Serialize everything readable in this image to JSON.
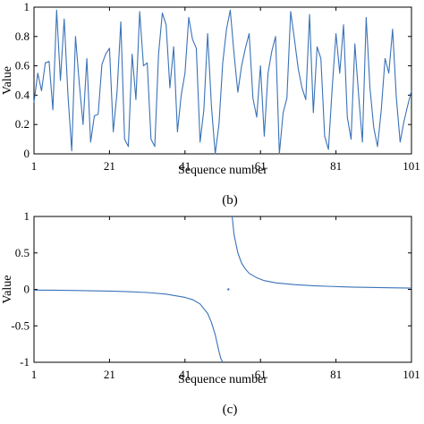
{
  "chart_data": [
    {
      "type": "line",
      "caption": "(b)",
      "xlabel": "Sequence number",
      "ylabel": "Value",
      "xlim": [
        1,
        101
      ],
      "ylim": [
        0,
        1
      ],
      "xticks": [
        "1",
        "21",
        "41",
        "61",
        "81",
        "101"
      ],
      "yticks": [
        "0",
        "0.2",
        "0.4",
        "0.6",
        "0.8",
        "1"
      ],
      "grid": false,
      "color": "#3a72b8",
      "series": [
        {
          "x": [
            1,
            2,
            3,
            4,
            5,
            6,
            7,
            8,
            9,
            10,
            11,
            12,
            13,
            14,
            15,
            16,
            17,
            18,
            19,
            20,
            21,
            22,
            23,
            24,
            25,
            26,
            27,
            28,
            29,
            30,
            31,
            32,
            33,
            34,
            35,
            36,
            37,
            38,
            39,
            40,
            41,
            42,
            43,
            44,
            45,
            46,
            47,
            48,
            49,
            50,
            51,
            52,
            53,
            54,
            55,
            56,
            57,
            58,
            59,
            60,
            61,
            62,
            63,
            64,
            65,
            66,
            67,
            68,
            69,
            70,
            71,
            72,
            73,
            74,
            75,
            76,
            77,
            78,
            79,
            80,
            81,
            82,
            83,
            84,
            85,
            86,
            87,
            88,
            89,
            90,
            91,
            92,
            93,
            94,
            95,
            96,
            97,
            98,
            99,
            100,
            101
          ],
          "values": [
            0.35,
            0.55,
            0.43,
            0.62,
            0.63,
            0.3,
            0.98,
            0.5,
            0.92,
            0.4,
            0.02,
            0.8,
            0.48,
            0.2,
            0.65,
            0.08,
            0.26,
            0.27,
            0.61,
            0.68,
            0.72,
            0.15,
            0.42,
            0.9,
            0.1,
            0.05,
            0.68,
            0.37,
            0.97,
            0.6,
            0.62,
            0.1,
            0.05,
            0.68,
            0.96,
            0.88,
            0.45,
            0.73,
            0.15,
            0.4,
            0.55,
            0.93,
            0.78,
            0.72,
            0.08,
            0.3,
            0.82,
            0.33,
            0.0,
            0.2,
            0.62,
            0.85,
            0.98,
            0.68,
            0.42,
            0.6,
            0.72,
            0.82,
            0.38,
            0.25,
            0.6,
            0.12,
            0.55,
            0.7,
            0.8,
            0.0,
            0.28,
            0.38,
            0.97,
            0.78,
            0.58,
            0.45,
            0.37,
            0.95,
            0.28,
            0.73,
            0.65,
            0.12,
            0.03,
            0.45,
            0.82,
            0.55,
            0.88,
            0.25,
            0.1,
            0.75,
            0.4,
            0.08,
            0.93,
            0.45,
            0.18,
            0.05,
            0.3,
            0.65,
            0.55,
            0.85,
            0.38,
            0.08,
            0.22,
            0.33,
            0.43
          ]
        }
      ]
    },
    {
      "type": "line",
      "caption": "(c)",
      "xlabel": "Sequence number",
      "ylabel": "Value",
      "xlim": [
        1,
        101
      ],
      "ylim": [
        -1,
        1
      ],
      "xticks": [
        "1",
        "21",
        "41",
        "61",
        "81",
        "101"
      ],
      "yticks": [
        "-1",
        "-0.5",
        "0",
        "0.5",
        "1"
      ],
      "grid": false,
      "color": "#3a72b8",
      "series": [
        {
          "x": [
            1,
            6,
            11,
            16,
            21,
            26,
            31,
            36,
            41,
            43,
            45,
            47,
            48,
            49,
            50,
            50.5,
            51
          ],
          "values": [
            -0.01,
            -0.012,
            -0.015,
            -0.019,
            -0.024,
            -0.031,
            -0.043,
            -0.065,
            -0.11,
            -0.14,
            -0.2,
            -0.33,
            -0.45,
            -0.62,
            -0.85,
            -0.95,
            -1.0
          ]
        },
        {
          "x": [
            52.5
          ],
          "values": [
            0.0
          ]
        },
        {
          "x": [
            53.5,
            54,
            55,
            56,
            57,
            58,
            60,
            62,
            65,
            70,
            75,
            80,
            85,
            90,
            95,
            101
          ],
          "values": [
            1.0,
            0.75,
            0.5,
            0.36,
            0.28,
            0.22,
            0.16,
            0.12,
            0.09,
            0.065,
            0.05,
            0.04,
            0.032,
            0.027,
            0.022,
            0.018
          ]
        }
      ]
    }
  ]
}
